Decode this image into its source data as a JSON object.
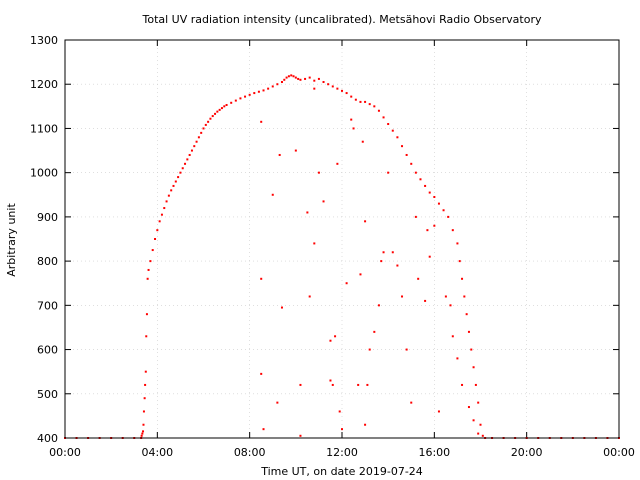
{
  "chart_data": {
    "type": "scatter",
    "title": "Total UV radiation intensity (uncalibrated). Metsähovi Radio Observatory",
    "xlabel": "Time UT, on date 2019-07-24",
    "ylabel": "Arbitrary unit",
    "xlim": [
      0,
      24
    ],
    "ylim": [
      400,
      1300
    ],
    "x_tick_labels": [
      "00:00",
      "04:00",
      "08:00",
      "12:00",
      "16:00",
      "20:00",
      "00:00"
    ],
    "y_tick_labels": [
      "400",
      "500",
      "600",
      "700",
      "800",
      "900",
      "1000",
      "1100",
      "1200",
      "1300"
    ],
    "grid": true,
    "series_color": "#ff0000",
    "series": [
      {
        "values": [
          [
            0.0,
            400
          ],
          [
            0.5,
            400
          ],
          [
            1.0,
            400
          ],
          [
            1.5,
            400
          ],
          [
            2.0,
            400
          ],
          [
            2.5,
            400
          ],
          [
            3.0,
            400
          ],
          [
            3.3,
            400
          ],
          [
            3.32,
            405
          ],
          [
            3.35,
            410
          ],
          [
            3.38,
            415
          ],
          [
            3.4,
            430
          ],
          [
            3.42,
            460
          ],
          [
            3.45,
            490
          ],
          [
            3.47,
            520
          ],
          [
            3.5,
            550
          ],
          [
            3.52,
            630
          ],
          [
            3.55,
            680
          ],
          [
            3.58,
            760
          ],
          [
            3.62,
            780
          ],
          [
            3.7,
            800
          ],
          [
            3.8,
            825
          ],
          [
            3.9,
            850
          ],
          [
            4.0,
            870
          ],
          [
            4.1,
            890
          ],
          [
            4.2,
            905
          ],
          [
            4.3,
            920
          ],
          [
            4.4,
            935
          ],
          [
            4.5,
            948
          ],
          [
            4.6,
            960
          ],
          [
            4.7,
            970
          ],
          [
            4.8,
            980
          ],
          [
            4.9,
            990
          ],
          [
            5.0,
            1000
          ],
          [
            5.1,
            1010
          ],
          [
            5.2,
            1020
          ],
          [
            5.3,
            1030
          ],
          [
            5.4,
            1040
          ],
          [
            5.5,
            1050
          ],
          [
            5.6,
            1060
          ],
          [
            5.7,
            1070
          ],
          [
            5.8,
            1080
          ],
          [
            5.9,
            1090
          ],
          [
            6.0,
            1100
          ],
          [
            6.1,
            1108
          ],
          [
            6.2,
            1115
          ],
          [
            6.3,
            1122
          ],
          [
            6.4,
            1128
          ],
          [
            6.5,
            1133
          ],
          [
            6.6,
            1138
          ],
          [
            6.7,
            1142
          ],
          [
            6.8,
            1146
          ],
          [
            6.9,
            1150
          ],
          [
            7.0,
            1153
          ],
          [
            7.2,
            1158
          ],
          [
            7.4,
            1163
          ],
          [
            7.6,
            1168
          ],
          [
            7.8,
            1172
          ],
          [
            8.0,
            1176
          ],
          [
            8.2,
            1180
          ],
          [
            8.4,
            1183
          ],
          [
            8.6,
            1186
          ],
          [
            8.8,
            1190
          ],
          [
            9.0,
            1195
          ],
          [
            9.2,
            1200
          ],
          [
            9.4,
            1205
          ],
          [
            9.5,
            1210
          ],
          [
            9.6,
            1215
          ],
          [
            9.7,
            1218
          ],
          [
            9.8,
            1220
          ],
          [
            9.9,
            1218
          ],
          [
            10.0,
            1215
          ],
          [
            10.1,
            1212
          ],
          [
            10.2,
            1210
          ],
          [
            10.4,
            1212
          ],
          [
            10.6,
            1215
          ],
          [
            10.8,
            1208
          ],
          [
            11.0,
            1212
          ],
          [
            11.2,
            1205
          ],
          [
            11.4,
            1200
          ],
          [
            11.6,
            1195
          ],
          [
            11.8,
            1190
          ],
          [
            12.0,
            1185
          ],
          [
            12.2,
            1180
          ],
          [
            12.4,
            1172
          ],
          [
            12.6,
            1165
          ],
          [
            12.8,
            1160
          ],
          [
            13.0,
            1160
          ],
          [
            13.2,
            1155
          ],
          [
            13.4,
            1150
          ],
          [
            13.6,
            1140
          ],
          [
            13.8,
            1125
          ],
          [
            14.0,
            1110
          ],
          [
            14.2,
            1095
          ],
          [
            14.4,
            1080
          ],
          [
            14.6,
            1060
          ],
          [
            14.8,
            1040
          ],
          [
            15.0,
            1020
          ],
          [
            15.2,
            1000
          ],
          [
            15.4,
            985
          ],
          [
            15.6,
            970
          ],
          [
            15.8,
            955
          ],
          [
            16.0,
            945
          ],
          [
            16.2,
            930
          ],
          [
            16.4,
            915
          ],
          [
            16.6,
            900
          ],
          [
            16.8,
            870
          ],
          [
            17.0,
            840
          ],
          [
            17.1,
            800
          ],
          [
            17.2,
            760
          ],
          [
            17.3,
            720
          ],
          [
            17.4,
            680
          ],
          [
            17.5,
            640
          ],
          [
            17.6,
            600
          ],
          [
            17.7,
            560
          ],
          [
            17.8,
            520
          ],
          [
            17.9,
            480
          ],
          [
            18.0,
            430
          ],
          [
            18.1,
            405
          ],
          [
            18.2,
            400
          ],
          [
            18.5,
            400
          ],
          [
            19.0,
            400
          ],
          [
            19.5,
            400
          ],
          [
            20.0,
            400
          ],
          [
            20.5,
            400
          ],
          [
            21.0,
            400
          ],
          [
            21.5,
            400
          ],
          [
            22.0,
            400
          ],
          [
            22.5,
            400
          ],
          [
            23.0,
            400
          ],
          [
            23.5,
            400
          ],
          [
            24.0,
            400
          ],
          [
            8.5,
            1115
          ],
          [
            8.5,
            760
          ],
          [
            8.5,
            545
          ],
          [
            8.6,
            420
          ],
          [
            9.0,
            950
          ],
          [
            9.2,
            480
          ],
          [
            9.3,
            1040
          ],
          [
            9.4,
            695
          ],
          [
            10.0,
            1050
          ],
          [
            10.2,
            520
          ],
          [
            10.2,
            405
          ],
          [
            10.5,
            910
          ],
          [
            10.6,
            720
          ],
          [
            10.8,
            840
          ],
          [
            10.8,
            1190
          ],
          [
            11.0,
            1000
          ],
          [
            11.2,
            935
          ],
          [
            11.5,
            530
          ],
          [
            11.5,
            620
          ],
          [
            11.6,
            520
          ],
          [
            11.7,
            630
          ],
          [
            11.8,
            1020
          ],
          [
            11.9,
            460
          ],
          [
            12.0,
            420
          ],
          [
            12.2,
            750
          ],
          [
            12.4,
            1120
          ],
          [
            12.5,
            1100
          ],
          [
            12.7,
            520
          ],
          [
            12.8,
            770
          ],
          [
            12.9,
            1070
          ],
          [
            13.0,
            890
          ],
          [
            13.0,
            430
          ],
          [
            13.1,
            520
          ],
          [
            13.2,
            600
          ],
          [
            13.4,
            640
          ],
          [
            13.6,
            700
          ],
          [
            13.7,
            800
          ],
          [
            13.8,
            820
          ],
          [
            14.0,
            1000
          ],
          [
            14.2,
            820
          ],
          [
            14.4,
            790
          ],
          [
            14.6,
            720
          ],
          [
            14.8,
            600
          ],
          [
            15.0,
            480
          ],
          [
            15.2,
            900
          ],
          [
            15.3,
            760
          ],
          [
            15.6,
            710
          ],
          [
            15.7,
            870
          ],
          [
            15.8,
            810
          ],
          [
            16.0,
            880
          ],
          [
            16.2,
            460
          ],
          [
            16.5,
            720
          ],
          [
            16.7,
            700
          ],
          [
            16.8,
            630
          ],
          [
            17.0,
            580
          ],
          [
            17.2,
            520
          ],
          [
            17.5,
            470
          ],
          [
            17.7,
            440
          ],
          [
            17.9,
            410
          ]
        ]
      }
    ]
  }
}
